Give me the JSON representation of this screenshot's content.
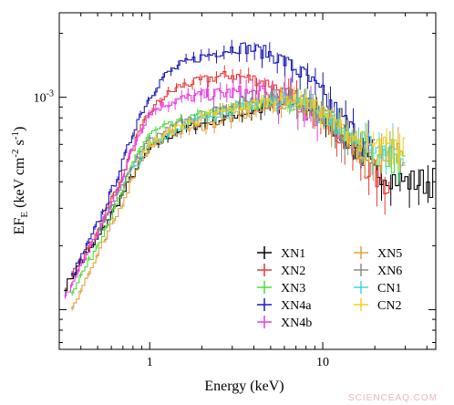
{
  "chart_data": {
    "type": "line",
    "xlabel": "Energy (keV)",
    "ylabel_main": "EF",
    "ylabel_sub": "E",
    "ylabel_units": " (keV cm",
    "ylabel_exp1": "-2",
    "ylabel_mid": " s",
    "ylabel_exp2": "-1",
    "ylabel_end": ")",
    "x_scale": "log",
    "y_scale": "log",
    "xlim": [
      0.3,
      45
    ],
    "ylim": [
      6.5e-05,
      0.0025
    ],
    "x_ticks": [
      {
        "value": 1,
        "label": "1"
      },
      {
        "value": 10,
        "label": "10"
      }
    ],
    "y_ticks": [
      {
        "value": 0.001,
        "label_base": "10",
        "label_exp": "-3"
      }
    ],
    "legend_position": "bottom-right",
    "series": [
      {
        "name": "XN1",
        "color": "#000000",
        "points": [
          [
            0.32,
            0.000125
          ],
          [
            0.4,
            0.000165
          ],
          [
            0.5,
            0.000215
          ],
          [
            0.6,
            0.00028
          ],
          [
            0.7,
            0.00035
          ],
          [
            0.8,
            0.00043
          ],
          [
            0.9,
            0.0005
          ],
          [
            1.0,
            0.00057
          ],
          [
            1.2,
            0.00063
          ],
          [
            1.5,
            0.0007
          ],
          [
            2.0,
            0.00075
          ],
          [
            2.5,
            0.00078
          ],
          [
            3.0,
            0.00082
          ],
          [
            4.0,
            0.00086
          ],
          [
            5.0,
            0.0009
          ],
          [
            6.0,
            0.00093
          ],
          [
            7.0,
            0.00094
          ],
          [
            8.0,
            0.0009
          ],
          [
            10.0,
            0.00082
          ],
          [
            12.0,
            0.0007
          ],
          [
            15.0,
            0.00058
          ],
          [
            20.0,
            0.00045
          ],
          [
            30.0,
            0.0004
          ],
          [
            45.0,
            0.0004
          ]
        ]
      },
      {
        "name": "XN2",
        "color": "#e53935",
        "points": [
          [
            0.35,
            0.00014
          ],
          [
            0.45,
            0.0002
          ],
          [
            0.55,
            0.00028
          ],
          [
            0.65,
            0.00038
          ],
          [
            0.75,
            0.0005
          ],
          [
            0.85,
            0.00065
          ],
          [
            1.0,
            0.00085
          ],
          [
            1.2,
            0.001
          ],
          [
            1.5,
            0.00113
          ],
          [
            2.0,
            0.0012
          ],
          [
            2.5,
            0.00125
          ],
          [
            3.0,
            0.00127
          ],
          [
            4.0,
            0.00122
          ],
          [
            5.0,
            0.00115
          ],
          [
            6.0,
            0.00105
          ],
          [
            8.0,
            0.00095
          ],
          [
            10.0,
            0.00083
          ],
          [
            12.0,
            0.00068
          ],
          [
            15.0,
            0.00055
          ],
          [
            20.0,
            0.00043
          ],
          [
            25.0,
            0.00038
          ]
        ]
      },
      {
        "name": "XN3",
        "color": "#4cdb3c",
        "points": [
          [
            0.35,
            0.00012
          ],
          [
            0.45,
            0.00017
          ],
          [
            0.55,
            0.00024
          ],
          [
            0.65,
            0.00031
          ],
          [
            0.75,
            0.00042
          ],
          [
            0.85,
            0.00055
          ],
          [
            1.0,
            0.00067
          ],
          [
            1.2,
            0.00072
          ],
          [
            1.5,
            0.00076
          ],
          [
            2.0,
            0.00083
          ],
          [
            2.5,
            0.00086
          ],
          [
            3.0,
            0.00089
          ],
          [
            4.0,
            0.00091
          ],
          [
            5.0,
            0.00093
          ],
          [
            6.0,
            0.00095
          ],
          [
            8.0,
            0.00092
          ],
          [
            10.0,
            0.00082
          ],
          [
            12.0,
            0.0007
          ],
          [
            15.0,
            0.0006
          ],
          [
            20.0,
            0.00052
          ],
          [
            30.0,
            0.0005
          ]
        ]
      },
      {
        "name": "XN4a",
        "color": "#1a1ab8",
        "points": [
          [
            0.35,
            0.00014
          ],
          [
            0.45,
            0.00021
          ],
          [
            0.55,
            0.0003
          ],
          [
            0.65,
            0.00042
          ],
          [
            0.75,
            0.00058
          ],
          [
            0.85,
            0.00078
          ],
          [
            1.0,
            0.001
          ],
          [
            1.2,
            0.00125
          ],
          [
            1.5,
            0.00142
          ],
          [
            2.0,
            0.00155
          ],
          [
            2.5,
            0.00163
          ],
          [
            3.0,
            0.0017
          ],
          [
            3.5,
            0.00172
          ],
          [
            4.0,
            0.00168
          ],
          [
            5.0,
            0.0016
          ],
          [
            6.0,
            0.00148
          ],
          [
            8.0,
            0.00125
          ],
          [
            10.0,
            0.00102
          ],
          [
            12.0,
            0.00085
          ],
          [
            15.0,
            0.00068
          ],
          [
            20.0,
            0.00055
          ]
        ]
      },
      {
        "name": "XN4b",
        "color": "#e83ce0",
        "points": [
          [
            0.32,
            0.00011
          ],
          [
            0.4,
            0.00016
          ],
          [
            0.5,
            0.00023
          ],
          [
            0.6,
            0.00031
          ],
          [
            0.7,
            0.00043
          ],
          [
            0.8,
            0.00058
          ],
          [
            0.9,
            0.00072
          ],
          [
            1.0,
            0.00085
          ],
          [
            1.2,
            0.00092
          ],
          [
            1.5,
            0.00098
          ],
          [
            2.0,
            0.00102
          ],
          [
            2.5,
            0.00104
          ],
          [
            3.0,
            0.00105
          ],
          [
            4.0,
            0.00104
          ],
          [
            5.0,
            0.00101
          ],
          [
            6.0,
            0.00097
          ],
          [
            8.0,
            0.0009
          ],
          [
            10.0,
            0.0008
          ]
        ]
      },
      {
        "name": "XN5",
        "color": "#e0a040",
        "points": [
          [
            0.35,
            0.0001
          ],
          [
            0.45,
            0.00015
          ],
          [
            0.55,
            0.00021
          ],
          [
            0.65,
            0.00028
          ],
          [
            0.75,
            0.00037
          ],
          [
            0.85,
            0.00048
          ],
          [
            1.0,
            0.00058
          ],
          [
            1.2,
            0.00064
          ],
          [
            1.5,
            0.0007
          ],
          [
            2.0,
            0.00073
          ],
          [
            2.5,
            0.00076
          ],
          [
            3.0,
            0.0008
          ],
          [
            4.0,
            0.00085
          ],
          [
            5.0,
            0.0009
          ],
          [
            6.0,
            0.00094
          ],
          [
            8.0,
            0.00092
          ],
          [
            10.0,
            0.00083
          ],
          [
            12.0,
            0.0007
          ],
          [
            15.0,
            0.0006
          ],
          [
            20.0,
            0.00055
          ],
          [
            30.0,
            0.00053
          ]
        ]
      },
      {
        "name": "XN6",
        "color": "#8a8a8a",
        "points": [
          [
            0.5,
            0.00023
          ],
          [
            0.6,
            0.0003
          ],
          [
            0.7,
            0.00038
          ],
          [
            0.8,
            0.00047
          ],
          [
            0.9,
            0.00056
          ],
          [
            1.0,
            0.00063
          ],
          [
            1.5,
            0.00075
          ],
          [
            2.0,
            0.00083
          ],
          [
            3.0,
            0.00092
          ],
          [
            4.0,
            0.00097
          ],
          [
            5.0,
            0.001
          ],
          [
            6.0,
            0.00101
          ],
          [
            8.0,
            0.00096
          ],
          [
            10.0,
            0.00085
          ],
          [
            12.0,
            0.00072
          ],
          [
            15.0,
            0.0006
          ]
        ]
      },
      {
        "name": "CN1",
        "color": "#40d8d8",
        "points": [
          [
            0.8,
            0.00045
          ],
          [
            1.0,
            0.0006
          ],
          [
            1.5,
            0.00072
          ],
          [
            2.0,
            0.0008
          ],
          [
            3.0,
            0.00087
          ],
          [
            4.0,
            0.00093
          ],
          [
            5.0,
            0.00096
          ],
          [
            6.0,
            0.00098
          ],
          [
            8.0,
            0.00094
          ],
          [
            10.0,
            0.00085
          ],
          [
            12.0,
            0.00074
          ],
          [
            15.0,
            0.00064
          ],
          [
            20.0,
            0.00058
          ],
          [
            30.0,
            0.00056
          ]
        ]
      },
      {
        "name": "CN2",
        "color": "#f0d020",
        "points": [
          [
            0.9,
            0.00052
          ],
          [
            1.0,
            0.0006
          ],
          [
            1.5,
            0.00073
          ],
          [
            2.0,
            0.0008
          ],
          [
            3.0,
            0.00088
          ],
          [
            4.0,
            0.00093
          ],
          [
            5.0,
            0.00097
          ],
          [
            6.0,
            0.00099
          ],
          [
            8.0,
            0.00095
          ],
          [
            10.0,
            0.00086
          ],
          [
            12.0,
            0.00075
          ],
          [
            15.0,
            0.00065
          ],
          [
            20.0,
            0.00058
          ],
          [
            30.0,
            0.00055
          ]
        ]
      }
    ]
  },
  "legend": {
    "col1": [
      "XN1",
      "XN2",
      "XN3",
      "XN4a",
      "XN4b"
    ],
    "col2": [
      "XN5",
      "XN6",
      "CN1",
      "CN2"
    ]
  },
  "watermark": "SCIENCEAQ.COM"
}
